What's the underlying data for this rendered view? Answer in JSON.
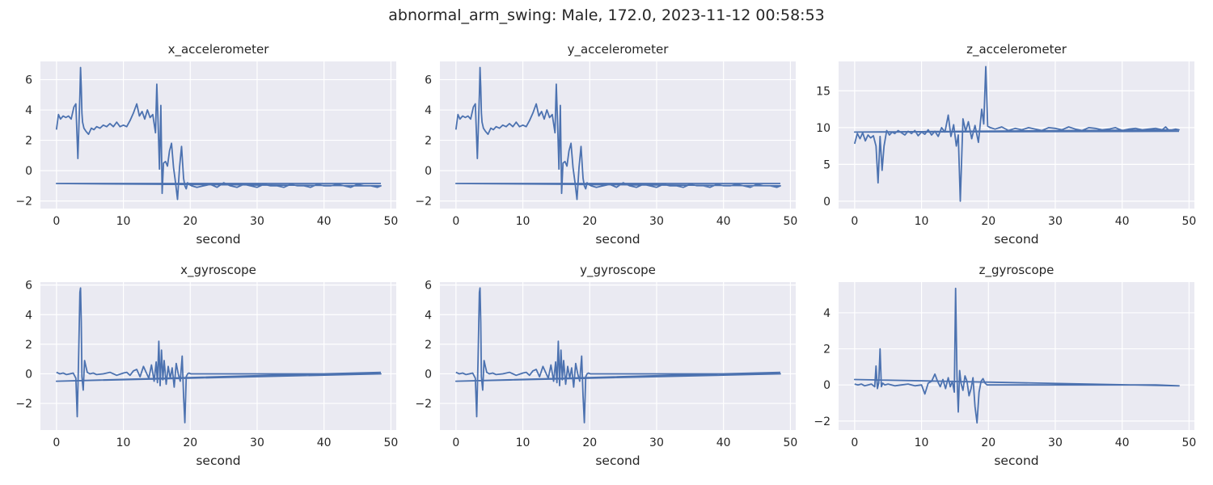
{
  "suptitle": "abnormal_arm_swing: Male, 172.0, 2023-11-12 00:58:53",
  "colors": {
    "background": "#eaeaf2",
    "grid": "#ffffff",
    "line": "#4c72b0"
  },
  "chart_data": [
    {
      "type": "line",
      "title": "x_accelerometer",
      "xlabel": "second",
      "ylabel": "",
      "xlim": [
        -2.4,
        50.8
      ],
      "ylim": [
        -2.5,
        7.2
      ],
      "xticks": [
        0,
        10,
        20,
        30,
        40,
        50
      ],
      "yticks": [
        -2,
        0,
        2,
        4,
        6
      ],
      "grid": true,
      "x": [
        0,
        0.3,
        0.6,
        1.0,
        1.4,
        1.8,
        2.2,
        2.6,
        2.9,
        3.2,
        3.5,
        3.6,
        3.7,
        3.8,
        3.9,
        4.1,
        4.4,
        4.8,
        5.2,
        5.6,
        6.0,
        6.5,
        7.0,
        7.5,
        8.0,
        8.5,
        9.0,
        9.5,
        10.0,
        10.5,
        11.0,
        11.5,
        12.0,
        12.4,
        12.8,
        13.2,
        13.6,
        14.0,
        14.4,
        14.8,
        15.0,
        15.2,
        15.4,
        15.6,
        15.8,
        16.0,
        16.3,
        16.6,
        16.9,
        17.2,
        17.5,
        17.8,
        18.1,
        18.4,
        18.7,
        19.0,
        19.2,
        19.4,
        19.6,
        19.8,
        20.2,
        21.0,
        22.0,
        23.0,
        24.0,
        25.0,
        26.0,
        27.0,
        28.0,
        29.0,
        30.0,
        31.0,
        32.0,
        33.0,
        34.0,
        35.0,
        36.0,
        37.0,
        38.0,
        39.0,
        40.0,
        41.0,
        42.0,
        43.0,
        44.0,
        45.0,
        46.0,
        47.0,
        48.0,
        48.5,
        0,
        48.5
      ],
      "y": [
        2.7,
        3.7,
        3.4,
        3.6,
        3.5,
        3.6,
        3.4,
        4.2,
        4.4,
        0.8,
        5.0,
        6.8,
        5.5,
        3.8,
        3.2,
        2.8,
        2.6,
        2.4,
        2.8,
        2.7,
        2.9,
        2.8,
        3.0,
        2.9,
        3.1,
        2.9,
        3.2,
        2.9,
        3.0,
        2.9,
        3.3,
        3.8,
        4.4,
        3.6,
        3.9,
        3.4,
        4.0,
        3.5,
        3.7,
        2.5,
        5.7,
        3.0,
        0.1,
        4.3,
        -1.5,
        0.5,
        0.6,
        0.3,
        1.3,
        1.8,
        0.2,
        -0.8,
        -1.9,
        0.2,
        1.6,
        -0.5,
        -1.0,
        -1.2,
        -0.8,
        -0.9,
        -1.0,
        -1.1,
        -1.0,
        -0.9,
        -1.1,
        -0.8,
        -1.0,
        -1.1,
        -0.9,
        -1.0,
        -1.1,
        -0.9,
        -1.0,
        -1.0,
        -1.1,
        -0.9,
        -1.0,
        -1.0,
        -1.1,
        -0.9,
        -1.0,
        -1.0,
        -0.9,
        -1.0,
        -1.1,
        -0.9,
        -1.0,
        -1.0,
        -1.1,
        -1.0,
        -0.85,
        -0.85
      ]
    },
    {
      "type": "line",
      "title": "y_accelerometer",
      "xlabel": "second",
      "ylabel": "",
      "xlim": [
        -2.4,
        50.8
      ],
      "ylim": [
        -2.5,
        7.2
      ],
      "xticks": [
        0,
        10,
        20,
        30,
        40,
        50
      ],
      "yticks": [
        -2,
        0,
        2,
        4,
        6
      ],
      "grid": true,
      "x": [
        0,
        0.3,
        0.6,
        1.0,
        1.4,
        1.8,
        2.2,
        2.6,
        2.9,
        3.2,
        3.5,
        3.6,
        3.7,
        3.8,
        3.9,
        4.1,
        4.4,
        4.8,
        5.2,
        5.6,
        6.0,
        6.5,
        7.0,
        7.5,
        8.0,
        8.5,
        9.0,
        9.5,
        10.0,
        10.5,
        11.0,
        11.5,
        12.0,
        12.4,
        12.8,
        13.2,
        13.6,
        14.0,
        14.4,
        14.8,
        15.0,
        15.2,
        15.4,
        15.6,
        15.8,
        16.0,
        16.3,
        16.6,
        16.9,
        17.2,
        17.5,
        17.8,
        18.1,
        18.4,
        18.7,
        19.0,
        19.2,
        19.4,
        19.6,
        19.8,
        20.2,
        21.0,
        22.0,
        23.0,
        24.0,
        25.0,
        26.0,
        27.0,
        28.0,
        29.0,
        30.0,
        31.0,
        32.0,
        33.0,
        34.0,
        35.0,
        36.0,
        37.0,
        38.0,
        39.0,
        40.0,
        41.0,
        42.0,
        43.0,
        44.0,
        45.0,
        46.0,
        47.0,
        48.0,
        48.5,
        0,
        48.5
      ],
      "y": [
        2.7,
        3.7,
        3.4,
        3.6,
        3.5,
        3.6,
        3.4,
        4.2,
        4.4,
        0.8,
        5.0,
        6.8,
        5.5,
        3.8,
        3.2,
        2.8,
        2.6,
        2.4,
        2.8,
        2.7,
        2.9,
        2.8,
        3.0,
        2.9,
        3.1,
        2.9,
        3.2,
        2.9,
        3.0,
        2.9,
        3.3,
        3.8,
        4.4,
        3.6,
        3.9,
        3.4,
        4.0,
        3.5,
        3.7,
        2.5,
        5.7,
        3.0,
        0.1,
        4.3,
        -1.5,
        0.5,
        0.6,
        0.3,
        1.3,
        1.8,
        0.2,
        -0.8,
        -1.9,
        0.2,
        1.6,
        -0.5,
        -1.0,
        -1.2,
        -0.8,
        -0.9,
        -1.0,
        -1.1,
        -1.0,
        -0.9,
        -1.1,
        -0.8,
        -1.0,
        -1.1,
        -0.9,
        -1.0,
        -1.1,
        -0.9,
        -1.0,
        -1.0,
        -1.1,
        -0.9,
        -1.0,
        -1.0,
        -1.1,
        -0.9,
        -1.0,
        -1.0,
        -0.9,
        -1.0,
        -1.1,
        -0.9,
        -1.0,
        -1.0,
        -1.1,
        -1.0,
        -0.85,
        -0.85
      ]
    },
    {
      "type": "line",
      "title": "z_accelerometer",
      "xlabel": "second",
      "ylabel": "",
      "xlim": [
        -2.4,
        50.8
      ],
      "ylim": [
        -1.0,
        19.0
      ],
      "xticks": [
        0,
        10,
        20,
        30,
        40,
        50
      ],
      "yticks": [
        0,
        5,
        10,
        15
      ],
      "grid": true,
      "x": [
        0,
        0.4,
        0.8,
        1.2,
        1.6,
        2.0,
        2.4,
        2.8,
        3.2,
        3.5,
        3.8,
        4.1,
        4.4,
        4.8,
        5.2,
        5.6,
        6.0,
        6.5,
        7.0,
        7.5,
        8.0,
        8.5,
        9.0,
        9.5,
        10.0,
        10.5,
        11.0,
        11.5,
        12.0,
        12.5,
        13.0,
        13.5,
        14.0,
        14.4,
        14.8,
        15.2,
        15.5,
        15.8,
        16.2,
        16.6,
        17.0,
        17.5,
        18.0,
        18.5,
        19.0,
        19.3,
        19.6,
        19.9,
        20.3,
        21.0,
        22.0,
        23.0,
        24.0,
        25.0,
        26.0,
        27.0,
        28.0,
        29.0,
        30.0,
        31.0,
        32.0,
        33.0,
        34.0,
        35.0,
        36.0,
        37.0,
        38.0,
        39.0,
        40.0,
        41.0,
        42.0,
        43.0,
        44.0,
        45.0,
        46.0,
        46.5,
        47.0,
        48.0,
        48.5,
        0,
        48.5
      ],
      "y": [
        7.8,
        9.2,
        8.5,
        9.3,
        8.2,
        9.0,
        8.6,
        8.9,
        7.5,
        2.5,
        8.8,
        4.2,
        7.5,
        9.6,
        9.0,
        9.4,
        9.2,
        9.6,
        9.3,
        9.0,
        9.5,
        9.2,
        9.6,
        8.9,
        9.4,
        9.1,
        9.7,
        9.0,
        9.5,
        8.8,
        10.0,
        9.4,
        11.7,
        8.8,
        10.4,
        7.5,
        9.0,
        0.0,
        11.2,
        9.5,
        10.8,
        8.5,
        10.3,
        8.0,
        12.5,
        10.5,
        18.3,
        10.2,
        10.0,
        9.8,
        10.1,
        9.6,
        9.9,
        9.7,
        10.0,
        9.8,
        9.6,
        10.0,
        9.9,
        9.7,
        10.1,
        9.8,
        9.6,
        10.0,
        9.9,
        9.7,
        9.8,
        10.0,
        9.6,
        9.8,
        9.9,
        9.7,
        9.8,
        9.9,
        9.7,
        10.1,
        9.6,
        9.8,
        9.7,
        9.4,
        9.5
      ]
    },
    {
      "type": "line",
      "title": "x_gyroscope",
      "xlabel": "second",
      "ylabel": "",
      "xlim": [
        -2.4,
        50.8
      ],
      "ylim": [
        -3.8,
        6.2
      ],
      "xticks": [
        0,
        10,
        20,
        30,
        40,
        50
      ],
      "yticks": [
        -2,
        0,
        2,
        4,
        6
      ],
      "grid": true,
      "x": [
        0,
        0.5,
        1.0,
        1.5,
        2.0,
        2.5,
        2.9,
        3.1,
        3.3,
        3.5,
        3.6,
        3.7,
        3.8,
        4.0,
        4.2,
        4.4,
        4.6,
        5.0,
        5.5,
        6.0,
        7.0,
        8.0,
        9.0,
        10.0,
        10.5,
        11.0,
        11.5,
        12.0,
        12.5,
        13.0,
        13.4,
        13.8,
        14.2,
        14.6,
        14.9,
        15.1,
        15.3,
        15.5,
        15.7,
        15.9,
        16.1,
        16.4,
        16.7,
        17.0,
        17.3,
        17.6,
        17.9,
        18.2,
        18.5,
        18.8,
        19.0,
        19.2,
        19.4,
        19.6,
        19.8,
        20.1,
        21.0,
        25.0,
        30.0,
        35.0,
        40.0,
        45.0,
        48.5,
        0,
        48.5
      ],
      "y": [
        0.1,
        0.0,
        0.05,
        -0.05,
        0.0,
        0.05,
        -0.3,
        -2.9,
        0.8,
        5.5,
        5.8,
        3.5,
        -0.2,
        -1.1,
        0.9,
        0.5,
        0.1,
        0.0,
        0.05,
        -0.05,
        0.0,
        0.1,
        -0.1,
        0.05,
        0.1,
        -0.1,
        0.2,
        0.3,
        -0.2,
        0.5,
        0.1,
        -0.3,
        0.6,
        -0.5,
        0.8,
        -0.6,
        2.2,
        -0.8,
        1.6,
        -0.4,
        0.9,
        -0.7,
        0.5,
        -0.3,
        0.4,
        -0.9,
        0.7,
        0.0,
        -0.5,
        1.2,
        -1.5,
        -3.3,
        -0.2,
        0.0,
        0.05,
        0.0,
        0.0,
        0.0,
        0.0,
        0.0,
        0.0,
        0.0,
        0.0,
        -0.5,
        0.1
      ]
    },
    {
      "type": "line",
      "title": "y_gyroscope",
      "xlabel": "second",
      "ylabel": "",
      "xlim": [
        -2.4,
        50.8
      ],
      "ylim": [
        -3.8,
        6.2
      ],
      "xticks": [
        0,
        10,
        20,
        30,
        40,
        50
      ],
      "yticks": [
        -2,
        0,
        2,
        4,
        6
      ],
      "grid": true,
      "x": [
        0,
        0.5,
        1.0,
        1.5,
        2.0,
        2.5,
        2.9,
        3.1,
        3.3,
        3.5,
        3.6,
        3.7,
        3.8,
        4.0,
        4.2,
        4.4,
        4.6,
        5.0,
        5.5,
        6.0,
        7.0,
        8.0,
        9.0,
        10.0,
        10.5,
        11.0,
        11.5,
        12.0,
        12.5,
        13.0,
        13.4,
        13.8,
        14.2,
        14.6,
        14.9,
        15.1,
        15.3,
        15.5,
        15.7,
        15.9,
        16.1,
        16.4,
        16.7,
        17.0,
        17.3,
        17.6,
        17.9,
        18.2,
        18.5,
        18.8,
        19.0,
        19.2,
        19.4,
        19.6,
        19.8,
        20.1,
        21.0,
        25.0,
        30.0,
        35.0,
        40.0,
        45.0,
        48.5,
        0,
        48.5
      ],
      "y": [
        0.1,
        0.0,
        0.05,
        -0.05,
        0.0,
        0.05,
        -0.3,
        -2.9,
        0.8,
        5.5,
        5.8,
        3.5,
        -0.2,
        -1.1,
        0.9,
        0.5,
        0.1,
        0.0,
        0.05,
        -0.05,
        0.0,
        0.1,
        -0.1,
        0.05,
        0.1,
        -0.1,
        0.2,
        0.3,
        -0.2,
        0.5,
        0.1,
        -0.3,
        0.6,
        -0.5,
        0.8,
        -0.6,
        2.2,
        -0.8,
        1.6,
        -0.4,
        0.9,
        -0.7,
        0.5,
        -0.3,
        0.4,
        -0.9,
        0.7,
        0.0,
        -0.5,
        1.2,
        -1.5,
        -3.3,
        -0.2,
        0.0,
        0.05,
        0.0,
        0.0,
        0.0,
        0.0,
        0.0,
        0.0,
        0.0,
        0.0,
        -0.5,
        0.1
      ]
    },
    {
      "type": "line",
      "title": "z_gyroscope",
      "xlabel": "second",
      "ylabel": "",
      "xlim": [
        -2.4,
        50.8
      ],
      "ylim": [
        -2.5,
        5.7
      ],
      "xticks": [
        0,
        10,
        20,
        30,
        40,
        50
      ],
      "yticks": [
        -2,
        0,
        2,
        4
      ],
      "grid": true,
      "x": [
        0,
        0.5,
        1.0,
        1.5,
        2.0,
        2.5,
        3.0,
        3.2,
        3.4,
        3.6,
        3.8,
        4.0,
        4.2,
        4.5,
        5.0,
        6.0,
        7.0,
        8.0,
        9.0,
        10.0,
        10.5,
        11.0,
        11.5,
        12.0,
        12.4,
        12.8,
        13.2,
        13.6,
        14.0,
        14.3,
        14.6,
        14.9,
        15.1,
        15.3,
        15.5,
        15.7,
        15.9,
        16.2,
        16.5,
        16.8,
        17.1,
        17.4,
        17.7,
        18.0,
        18.3,
        18.6,
        18.9,
        19.2,
        19.5,
        19.8,
        20.2,
        22.0,
        25.0,
        30.0,
        35.0,
        40.0,
        45.0,
        48.5,
        0,
        48.5
      ],
      "y": [
        0.05,
        0.0,
        0.05,
        -0.05,
        0.0,
        0.05,
        -0.1,
        1.05,
        -0.2,
        0.1,
        2.0,
        -0.1,
        0.1,
        0.0,
        0.05,
        -0.05,
        0.0,
        0.05,
        -0.05,
        0.0,
        -0.5,
        0.1,
        0.2,
        0.6,
        0.2,
        -0.1,
        0.3,
        -0.2,
        0.4,
        -0.1,
        0.2,
        -0.4,
        5.35,
        0.5,
        -1.5,
        0.8,
        0.1,
        -0.3,
        0.5,
        0.2,
        -0.6,
        -0.2,
        0.4,
        -1.2,
        -2.1,
        -0.4,
        0.2,
        0.35,
        0.1,
        0.0,
        0.0,
        0.0,
        0.0,
        0.0,
        0.0,
        0.0,
        0.0,
        -0.05,
        0.3,
        -0.05
      ]
    }
  ]
}
